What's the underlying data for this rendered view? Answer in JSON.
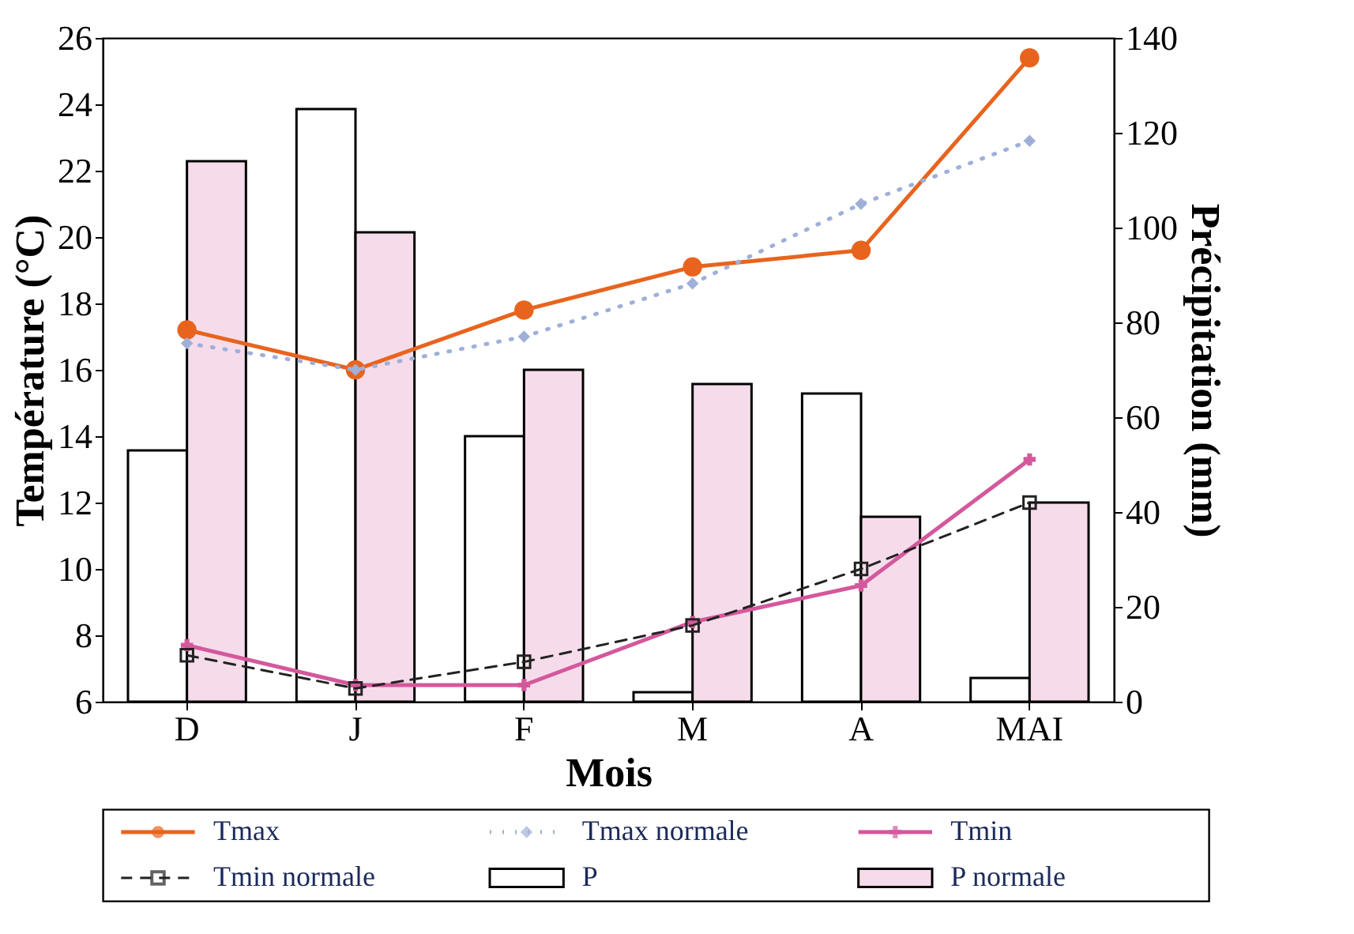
{
  "chart_data": {
    "type": "bar",
    "xlabel": "Mois",
    "ylabel": "Température (°C)",
    "y2label": "Précipitation (mm)",
    "categories": [
      "D",
      "J",
      "F",
      "M",
      "A",
      "MAI"
    ],
    "series": [
      {
        "name": "Tmax",
        "type": "line",
        "color": "#e8641e",
        "marker": "circle",
        "line_style": "solid",
        "values": [
          17.2,
          16.0,
          17.8,
          19.1,
          19.6,
          25.4
        ]
      },
      {
        "name": "Tmax normale",
        "type": "line",
        "color": "#9fb0d8",
        "marker": "diamond",
        "line_style": "dotted",
        "values": [
          16.8,
          16.0,
          17.0,
          18.6,
          21.0,
          22.9
        ]
      },
      {
        "name": "Tmin",
        "type": "line",
        "color": "#d4589c",
        "marker": "cross",
        "line_style": "solid",
        "values": [
          7.7,
          6.5,
          6.5,
          8.4,
          9.5,
          13.3
        ]
      },
      {
        "name": "Tmin normale",
        "type": "line",
        "color": "#222222",
        "marker": "square",
        "line_style": "dashed",
        "values": [
          7.4,
          6.4,
          7.2,
          8.3,
          10.0,
          12.0
        ]
      },
      {
        "name": "P",
        "type": "bar",
        "axis": "y2",
        "color": "#ffffff",
        "values": [
          53,
          125,
          56,
          2,
          65,
          5
        ]
      },
      {
        "name": "P normale",
        "type": "bar",
        "axis": "y2",
        "color": "#f6dcea",
        "values": [
          114,
          99,
          70,
          67,
          39,
          42
        ]
      }
    ],
    "ylim": [
      6,
      26
    ],
    "yticks": [
      6,
      8,
      10,
      12,
      14,
      16,
      18,
      20,
      22,
      24,
      26
    ],
    "y2lim": [
      0,
      140
    ],
    "y2ticks": [
      0,
      20,
      40,
      60,
      80,
      100,
      120,
      140
    ],
    "grid": false,
    "legend": "bottom"
  }
}
